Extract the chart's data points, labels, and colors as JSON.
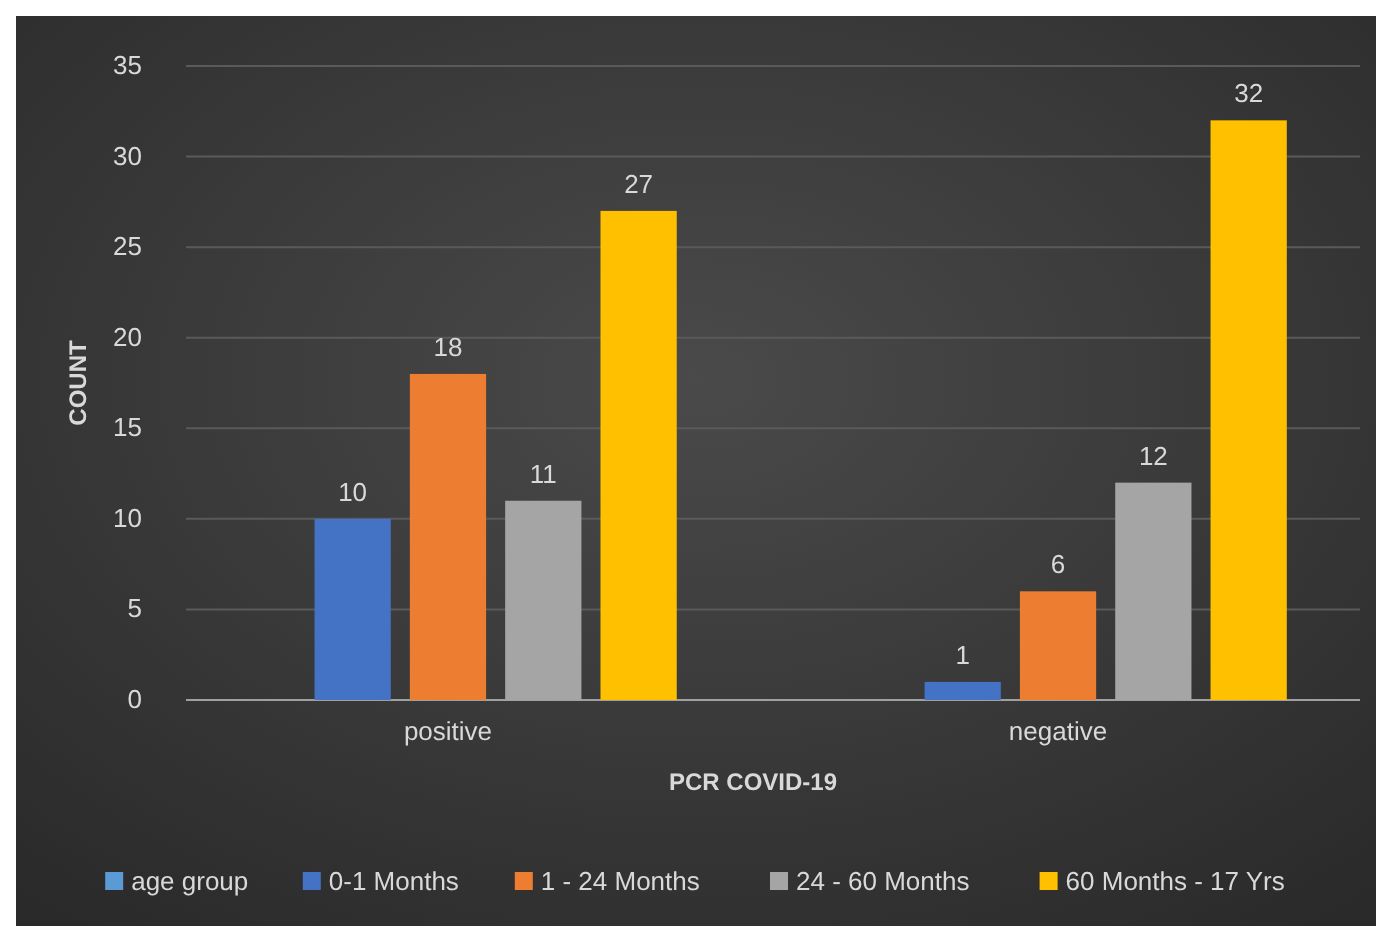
{
  "chart_data": {
    "type": "bar",
    "xlabel": "PCR COVID-19",
    "ylabel": "COUNT",
    "categories": [
      "positive",
      "negative"
    ],
    "series": [
      {
        "name": "age group",
        "color": "#5b9bd5",
        "values": [
          null,
          null
        ]
      },
      {
        "name": "0-1 Months",
        "color": "#4472c4",
        "values": [
          10,
          1
        ]
      },
      {
        "name": "1 - 24 Months",
        "color": "#ed7d31",
        "values": [
          18,
          6
        ]
      },
      {
        "name": "24 - 60 Months",
        "color": "#a5a5a5",
        "values": [
          11,
          12
        ]
      },
      {
        "name": "60 Months - 17 Yrs",
        "color": "#ffc000",
        "values": [
          27,
          32
        ]
      }
    ],
    "ylim": [
      0,
      35
    ],
    "yticks": [
      0,
      5,
      10,
      15,
      20,
      25,
      30,
      35
    ],
    "grid": "y",
    "legend": "bottom",
    "data_labels": true
  }
}
